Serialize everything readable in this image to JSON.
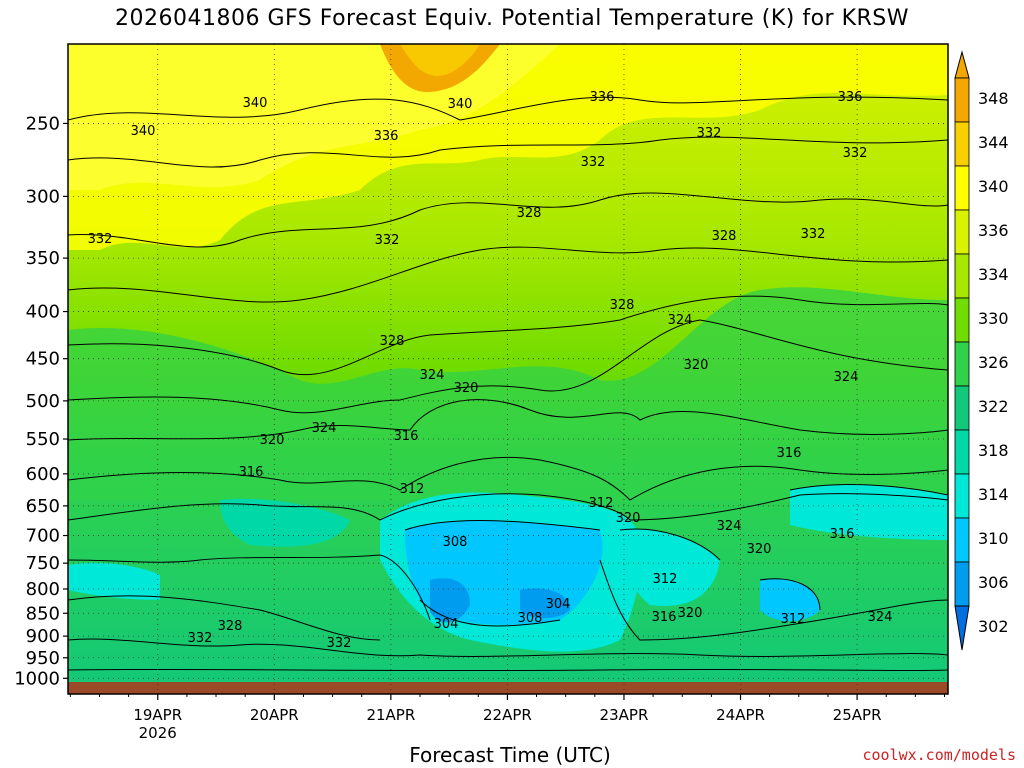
{
  "title": "2026041806 GFS Forecast Equiv. Potential Temperature (K) for KRSW",
  "xlabel": "Forecast Time (UTC)",
  "credit": "coolwx.com/models",
  "chart_data": {
    "type": "heatmap",
    "variable": "Equivalent Potential Temperature (K)",
    "y_axis_levels_hPa": [
      "250",
      "300",
      "350",
      "400",
      "450",
      "500",
      "550",
      "600",
      "650",
      "700",
      "750",
      "800",
      "850",
      "900",
      "950",
      "1000"
    ],
    "y_scale": "log-pressure, inverted",
    "x_tick_labels": [
      "19APR",
      "20APR",
      "21APR",
      "22APR",
      "23APR",
      "24APR",
      "25APR"
    ],
    "x_tick_sublabel": "2026",
    "colorbar_levels": [
      348,
      344,
      340,
      336,
      334,
      330,
      326,
      322,
      318,
      314,
      310,
      306,
      302
    ],
    "colorbar_colors": [
      "#f2a800",
      "#f8d000",
      "#ffff00",
      "#d8f200",
      "#a8e800",
      "#70dc00",
      "#30d24a",
      "#12c87a",
      "#00d8a8",
      "#00e8d8",
      "#00c8ff",
      "#009cf0",
      "#0070e0"
    ],
    "contour_labels": [
      "340",
      "340",
      "340",
      "336",
      "336",
      "336",
      "332",
      "332",
      "332",
      "332",
      "332",
      "332",
      "328",
      "328",
      "328",
      "328",
      "324",
      "324",
      "324",
      "324",
      "320",
      "320",
      "320",
      "316",
      "316",
      "316",
      "312",
      "312",
      "308",
      "308",
      "304",
      "304",
      "320",
      "324",
      "320",
      "312",
      "316",
      "312",
      "320",
      "316",
      "324",
      "332",
      "332",
      "328"
    ],
    "grid": true
  }
}
